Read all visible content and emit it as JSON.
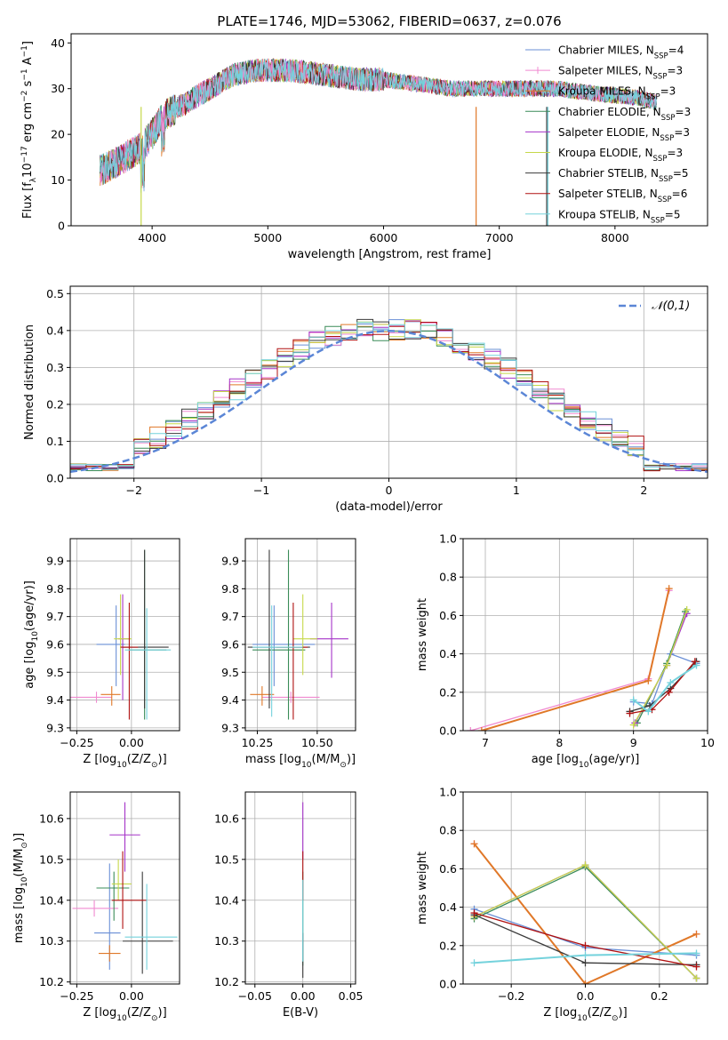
{
  "title": "PLATE=1746, MJD=53062, FIBERID=0637, z=0.076",
  "models": [
    {
      "name": "Chabrier MILES",
      "nssp": "4",
      "color": "#6a8fd6"
    },
    {
      "name": "Salpeter MILES",
      "nssp": "3",
      "color": "#f08ad0"
    },
    {
      "name": "Kroupa MILES",
      "nssp": "3",
      "color": "#e07828"
    },
    {
      "name": "Chabrier ELODIE",
      "nssp": "3",
      "color": "#3a8c58"
    },
    {
      "name": "Salpeter ELODIE",
      "nssp": "3",
      "color": "#a533c8"
    },
    {
      "name": "Kroupa ELODIE",
      "nssp": "3",
      "color": "#c6d84a"
    },
    {
      "name": "Chabrier STELIB",
      "nssp": "5",
      "color": "#3a3a3a"
    },
    {
      "name": "Salpeter STELIB",
      "nssp": "6",
      "color": "#b01010"
    },
    {
      "name": "Kroupa STELIB",
      "nssp": "5",
      "color": "#74d2dc"
    }
  ],
  "nssp_label": "N",
  "nssp_sub": "SSP",
  "chart_data": [
    {
      "id": "spectrum",
      "type": "line",
      "xlabel": "wavelength [Angstrom, rest frame]",
      "ylabel_parts": [
        "Flux [f",
        "λ",
        "10",
        "−17",
        " erg cm",
        "−2",
        " s",
        "−1",
        " A",
        "−1",
        "]"
      ],
      "xlim": [
        3300,
        8800
      ],
      "ylim": [
        0,
        42
      ],
      "xticks": [
        4000,
        5000,
        6000,
        7000,
        8000
      ],
      "yticks": [
        0,
        10,
        20,
        30,
        40
      ],
      "continuum": [
        [
          3550,
          12
        ],
        [
          3700,
          14
        ],
        [
          3900,
          17
        ],
        [
          4000,
          20
        ],
        [
          4100,
          24
        ],
        [
          4300,
          27
        ],
        [
          4500,
          30
        ],
        [
          4700,
          33
        ],
        [
          4900,
          34
        ],
        [
          5200,
          34
        ],
        [
          5500,
          33
        ],
        [
          5800,
          32
        ],
        [
          6000,
          32
        ],
        [
          6300,
          31
        ],
        [
          6600,
          30
        ],
        [
          6800,
          30
        ],
        [
          7000,
          30
        ],
        [
          7300,
          30
        ],
        [
          7500,
          30
        ],
        [
          7800,
          29
        ],
        [
          8000,
          28.5
        ],
        [
          8200,
          28
        ],
        [
          8350,
          27
        ]
      ],
      "legend_position": "right"
    },
    {
      "id": "residuals",
      "type": "histogram",
      "xlabel": "(data-model)/error",
      "ylabel": "Normed distribution",
      "xlim": [
        -2.5,
        2.5
      ],
      "ylim": [
        0,
        0.52
      ],
      "xticks": [
        -2,
        -1,
        0,
        1,
        2
      ],
      "yticks": [
        0,
        0.1,
        0.2,
        0.3,
        0.4,
        0.5
      ],
      "bin_width": 0.125,
      "reference": {
        "label": "𝒩(0,1)",
        "color": "#5b86d6"
      },
      "grid": true
    },
    {
      "id": "age_vs_Z",
      "type": "errorbar",
      "xlabel_parts": [
        "Z [log",
        "10",
        "(Z/Z",
        "⊙",
        ")]"
      ],
      "ylabel_parts": [
        "age  [log",
        "10",
        "(age/yr)]"
      ],
      "xlim": [
        -0.28,
        0.22
      ],
      "ylim": [
        9.29,
        9.98
      ],
      "xticks": [
        -0.25,
        0.0
      ],
      "yticks": [
        9.3,
        9.4,
        9.5,
        9.6,
        9.7,
        9.8,
        9.9
      ],
      "points": [
        {
          "m": 0,
          "x": -0.07,
          "y": 9.6,
          "xe": [
            0.09,
            0.04
          ],
          "ye": [
            0.15,
            0.14
          ]
        },
        {
          "m": 1,
          "x": -0.16,
          "y": 9.41,
          "xe": [
            0.12,
            0.07
          ],
          "ye": [
            0.02,
            0.02
          ]
        },
        {
          "m": 2,
          "x": -0.09,
          "y": 9.42,
          "xe": [
            0.05,
            0.04
          ],
          "ye": [
            0.04,
            0.03
          ]
        },
        {
          "m": 3,
          "x": 0.06,
          "y": 9.58,
          "xe": [
            0.07,
            0.1
          ],
          "ye": [
            0.25,
            0.36
          ]
        },
        {
          "m": 4,
          "x": -0.04,
          "y": 9.62,
          "xe": [
            0.02,
            0.03
          ],
          "ye": [
            0.22,
            0.16
          ]
        },
        {
          "m": 5,
          "x": -0.05,
          "y": 9.62,
          "xe": [
            0.03,
            0.05
          ],
          "ye": [
            0.13,
            0.16
          ]
        },
        {
          "m": 6,
          "x": 0.06,
          "y": 9.59,
          "xe": [
            0.1,
            0.11
          ],
          "ye": [
            0.22,
            0.35
          ]
        },
        {
          "m": 7,
          "x": -0.01,
          "y": 9.59,
          "xe": [
            0.04,
            0.04
          ],
          "ye": [
            0.26,
            0.16
          ]
        },
        {
          "m": 8,
          "x": 0.07,
          "y": 9.58,
          "xe": [
            0.1,
            0.11
          ],
          "ye": [
            0.25,
            0.15
          ]
        }
      ]
    },
    {
      "id": "age_vs_mass",
      "type": "errorbar",
      "xlabel_parts": [
        "mass [log",
        "10",
        "(M/M",
        "⊙",
        ")]"
      ],
      "ylabel_parts": [],
      "xlim": [
        10.2,
        10.66
      ],
      "ylim": [
        9.29,
        9.98
      ],
      "xticks": [
        10.25,
        10.5
      ],
      "xtick_labels": [
        "10.25",
        "10.50"
      ],
      "yticks": [
        9.3,
        9.4,
        9.5,
        9.6,
        9.7,
        9.8,
        9.9
      ],
      "points": [
        {
          "m": 0,
          "x": 10.32,
          "y": 9.6,
          "xe": [
            0.09,
            0.17
          ],
          "ye": [
            0.15,
            0.14
          ]
        },
        {
          "m": 1,
          "x": 10.39,
          "y": 9.41,
          "xe": [
            0.12,
            0.12
          ],
          "ye": [
            0.02,
            0.02
          ]
        },
        {
          "m": 2,
          "x": 10.27,
          "y": 9.42,
          "xe": [
            0.05,
            0.05
          ],
          "ye": [
            0.04,
            0.03
          ]
        },
        {
          "m": 3,
          "x": 10.38,
          "y": 9.58,
          "xe": [
            0.15,
            0.07
          ],
          "ye": [
            0.25,
            0.36
          ]
        },
        {
          "m": 4,
          "x": 10.56,
          "y": 9.62,
          "xe": [
            0.09,
            0.07
          ],
          "ye": [
            0.14,
            0.13
          ]
        },
        {
          "m": 5,
          "x": 10.44,
          "y": 9.62,
          "xe": [
            0.04,
            0.06
          ],
          "ye": [
            0.13,
            0.16
          ]
        },
        {
          "m": 6,
          "x": 10.3,
          "y": 9.59,
          "xe": [
            0.09,
            0.17
          ],
          "ye": [
            0.22,
            0.35
          ]
        },
        {
          "m": 7,
          "x": 10.4,
          "y": 9.59,
          "xe": [
            0.07,
            0.06
          ],
          "ye": [
            0.26,
            0.16
          ]
        },
        {
          "m": 8,
          "x": 10.31,
          "y": 9.59,
          "xe": [
            0.08,
            0.13
          ],
          "ye": [
            0.25,
            0.15
          ]
        }
      ]
    },
    {
      "id": "weight_vs_age",
      "type": "line",
      "xlabel_parts": [
        "age  [log",
        "10",
        "(age/yr)]"
      ],
      "ylabel": "mass weight",
      "xlim": [
        6.7,
        10.0
      ],
      "ylim": [
        0,
        1
      ],
      "xticks": [
        7,
        8,
        9,
        10
      ],
      "yticks": [
        0,
        0.2,
        0.4,
        0.6,
        0.8,
        1.0
      ],
      "series": [
        {
          "m": 0,
          "pts": [
            [
              9.0,
              0.15
            ],
            [
              9.25,
              0.14
            ],
            [
              9.5,
              0.4
            ],
            [
              9.85,
              0.35
            ]
          ]
        },
        {
          "m": 1,
          "pts": [
            [
              6.8,
              0.0
            ],
            [
              9.2,
              0.27
            ],
            [
              9.48,
              0.73
            ]
          ]
        },
        {
          "m": 2,
          "pts": [
            [
              6.95,
              0.0
            ],
            [
              9.2,
              0.26
            ],
            [
              9.48,
              0.74
            ]
          ]
        },
        {
          "m": 3,
          "pts": [
            [
              9.05,
              0.04
            ],
            [
              9.45,
              0.35
            ],
            [
              9.7,
              0.62
            ]
          ]
        },
        {
          "m": 4,
          "pts": [
            [
              9.02,
              0.04
            ],
            [
              9.45,
              0.34
            ],
            [
              9.72,
              0.61
            ]
          ]
        },
        {
          "m": 5,
          "pts": [
            [
              9.0,
              0.03
            ],
            [
              9.45,
              0.34
            ],
            [
              9.72,
              0.63
            ]
          ]
        },
        {
          "m": 6,
          "pts": [
            [
              8.95,
              0.1
            ],
            [
              9.22,
              0.13
            ],
            [
              9.5,
              0.22
            ],
            [
              9.85,
              0.36
            ]
          ]
        },
        {
          "m": 7,
          "pts": [
            [
              8.95,
              0.09
            ],
            [
              9.25,
              0.11
            ],
            [
              9.48,
              0.2
            ],
            [
              9.83,
              0.36
            ]
          ]
        },
        {
          "m": 8,
          "pts": [
            [
              9.0,
              0.16
            ],
            [
              9.2,
              0.1
            ],
            [
              9.5,
              0.25
            ],
            [
              9.85,
              0.34
            ]
          ]
        }
      ]
    },
    {
      "id": "mass_vs_Z",
      "type": "errorbar",
      "xlabel_parts": [
        "Z [log",
        "10",
        "(Z/Z",
        "⊙",
        ")]"
      ],
      "ylabel_parts": [
        "mass [log",
        "10",
        "(M/M",
        "⊙",
        ")]"
      ],
      "xlim": [
        -0.28,
        0.22
      ],
      "ylim": [
        10.195,
        10.665
      ],
      "xticks": [
        -0.25,
        0.0
      ],
      "yticks": [
        10.2,
        10.3,
        10.4,
        10.5,
        10.6
      ],
      "points": [
        {
          "m": 0,
          "x": -0.1,
          "y": 10.32,
          "xe": [
            0.07,
            0.05
          ],
          "ye": [
            0.09,
            0.17
          ]
        },
        {
          "m": 1,
          "x": -0.17,
          "y": 10.38,
          "xe": [
            0.1,
            0.11
          ],
          "ye": [
            0.02,
            0.02
          ]
        },
        {
          "m": 2,
          "x": -0.1,
          "y": 10.27,
          "xe": [
            0.05,
            0.05
          ],
          "ye": [
            0.02,
            0.02
          ]
        },
        {
          "m": 3,
          "x": -0.08,
          "y": 10.43,
          "xe": [
            0.08,
            0.07
          ],
          "ye": [
            0.08,
            0.04
          ]
        },
        {
          "m": 4,
          "x": -0.03,
          "y": 10.56,
          "xe": [
            0.07,
            0.07
          ],
          "ye": [
            0.09,
            0.08
          ]
        },
        {
          "m": 5,
          "x": -0.06,
          "y": 10.44,
          "xe": [
            0.03,
            0.06
          ],
          "ye": [
            0.04,
            0.06
          ]
        },
        {
          "m": 6,
          "x": 0.05,
          "y": 10.3,
          "xe": [
            0.09,
            0.14
          ],
          "ye": [
            0.08,
            0.17
          ]
        },
        {
          "m": 7,
          "x": -0.04,
          "y": 10.4,
          "xe": [
            0.05,
            0.11
          ],
          "ye": [
            0.07,
            0.12
          ]
        },
        {
          "m": 8,
          "x": 0.07,
          "y": 10.31,
          "xe": [
            0.1,
            0.14
          ],
          "ye": [
            0.08,
            0.13
          ]
        }
      ]
    },
    {
      "id": "mass_vs_ebv",
      "type": "errorbar",
      "xlabel": "E(B-V)",
      "ylabel_parts": [],
      "xlim": [
        -0.06,
        0.055
      ],
      "ylim": [
        10.195,
        10.665
      ],
      "xticks": [
        -0.05,
        0.0,
        0.05
      ],
      "xtick_labels": [
        "−0.05",
        "0.00",
        "0.05"
      ],
      "yticks": [
        10.2,
        10.3,
        10.4,
        10.5,
        10.6
      ],
      "points": [
        {
          "m": 3,
          "x": 0.0,
          "y": 10.33,
          "xe": [
            0,
            0
          ],
          "ye": [
            0.09,
            0.14
          ]
        },
        {
          "m": 4,
          "x": 0.0,
          "y": 10.55,
          "xe": [
            0,
            0
          ],
          "ye": [
            0.05,
            0.09
          ]
        },
        {
          "m": 7,
          "x": 0.0,
          "y": 10.44,
          "xe": [
            0,
            0
          ],
          "ye": [
            0.04,
            0.08
          ]
        },
        {
          "m": 6,
          "x": 0.0,
          "y": 10.27,
          "xe": [
            0,
            0
          ],
          "ye": [
            0.06,
            0.05
          ]
        },
        {
          "m": 8,
          "x": 0.0,
          "y": 10.35,
          "xe": [
            0,
            0
          ],
          "ye": [
            0.1,
            0.1
          ]
        }
      ]
    },
    {
      "id": "weight_vs_Z",
      "type": "line",
      "xlabel_parts": [
        "Z [log",
        "10",
        "(Z/Z",
        "⊙",
        ")]"
      ],
      "ylabel": "mass weight",
      "xlim": [
        -0.33,
        0.33
      ],
      "ylim": [
        0,
        1
      ],
      "xticks": [
        -0.2,
        0.0,
        0.2
      ],
      "xtick_labels": [
        "−0.2",
        "0.0",
        "0.2"
      ],
      "yticks": [
        0,
        0.2,
        0.4,
        0.6,
        0.8,
        1.0
      ],
      "series": [
        {
          "m": 0,
          "pts": [
            [
              -0.3,
              0.39
            ],
            [
              0.0,
              0.19
            ],
            [
              0.3,
              0.15
            ]
          ]
        },
        {
          "m": 1,
          "pts": [
            [
              -0.3,
              0.73
            ],
            [
              0.0,
              0.0
            ],
            [
              0.3,
              0.26
            ]
          ]
        },
        {
          "m": 2,
          "pts": [
            [
              -0.3,
              0.73
            ],
            [
              0.0,
              0.0
            ],
            [
              0.3,
              0.26
            ]
          ]
        },
        {
          "m": 3,
          "pts": [
            [
              -0.3,
              0.34
            ],
            [
              0.0,
              0.61
            ],
            [
              0.3,
              0.03
            ]
          ]
        },
        {
          "m": 4,
          "pts": [
            [
              -0.3,
              0.35
            ],
            [
              0.0,
              0.62
            ],
            [
              0.3,
              0.03
            ]
          ]
        },
        {
          "m": 5,
          "pts": [
            [
              -0.3,
              0.35
            ],
            [
              0.0,
              0.62
            ],
            [
              0.3,
              0.03
            ]
          ]
        },
        {
          "m": 6,
          "pts": [
            [
              -0.3,
              0.36
            ],
            [
              0.0,
              0.11
            ],
            [
              0.3,
              0.1
            ]
          ]
        },
        {
          "m": 7,
          "pts": [
            [
              -0.3,
              0.37
            ],
            [
              0.0,
              0.2
            ],
            [
              0.3,
              0.09
            ]
          ]
        },
        {
          "m": 8,
          "pts": [
            [
              -0.3,
              0.11
            ],
            [
              0.0,
              0.15
            ],
            [
              0.3,
              0.16
            ]
          ]
        }
      ]
    }
  ]
}
